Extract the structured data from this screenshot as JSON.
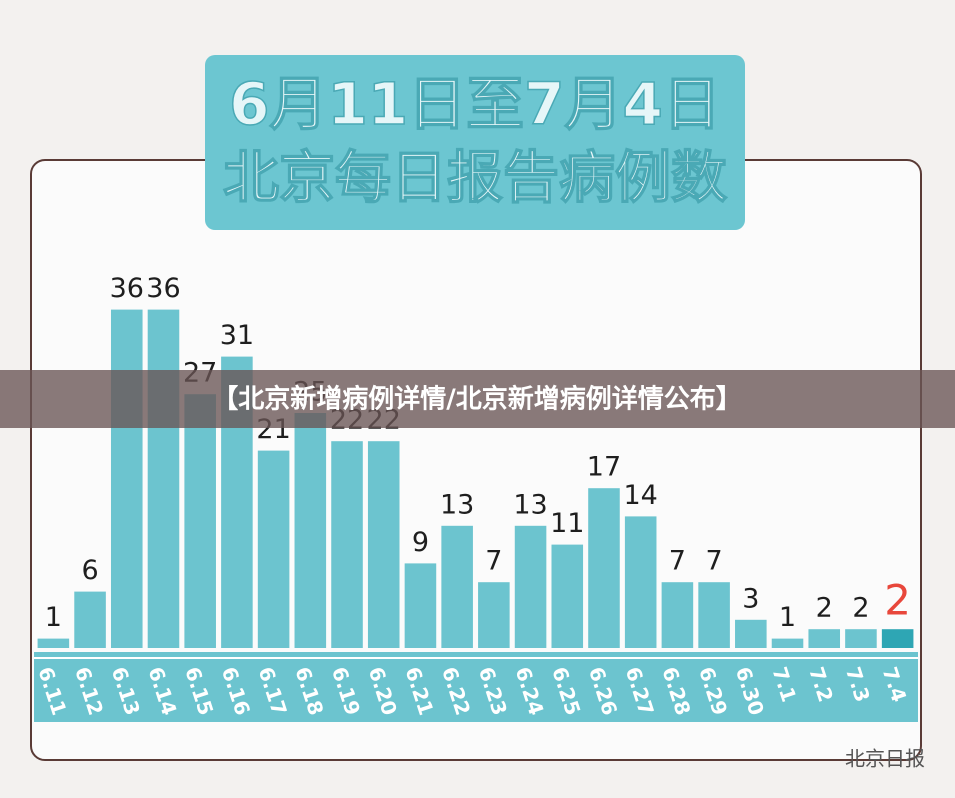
{
  "chart_data": {
    "type": "bar",
    "title": "6月11日至7月4日",
    "subtitle": "北京每日报告病例数",
    "banner": "【北京新增病例详情/北京新增病例详情公布】",
    "source": "北京日报",
    "categories": [
      "6.11",
      "6.12",
      "6.13",
      "6.14",
      "6.15",
      "6.16",
      "6.17",
      "6.18",
      "6.19",
      "6.20",
      "6.21",
      "6.22",
      "6.23",
      "6.24",
      "6.25",
      "6.26",
      "6.27",
      "6.28",
      "6.29",
      "6.30",
      "7.1",
      "7.2",
      "7.3",
      "7.4"
    ],
    "values": [
      1,
      6,
      36,
      36,
      27,
      31,
      21,
      25,
      22,
      22,
      9,
      13,
      7,
      13,
      11,
      17,
      14,
      7,
      7,
      3,
      1,
      2,
      2,
      2
    ],
    "color": "#6cc4cf",
    "last_color": "#2ea6b4",
    "last_label_color": "#e8473b",
    "ylim": [
      0,
      40
    ]
  }
}
